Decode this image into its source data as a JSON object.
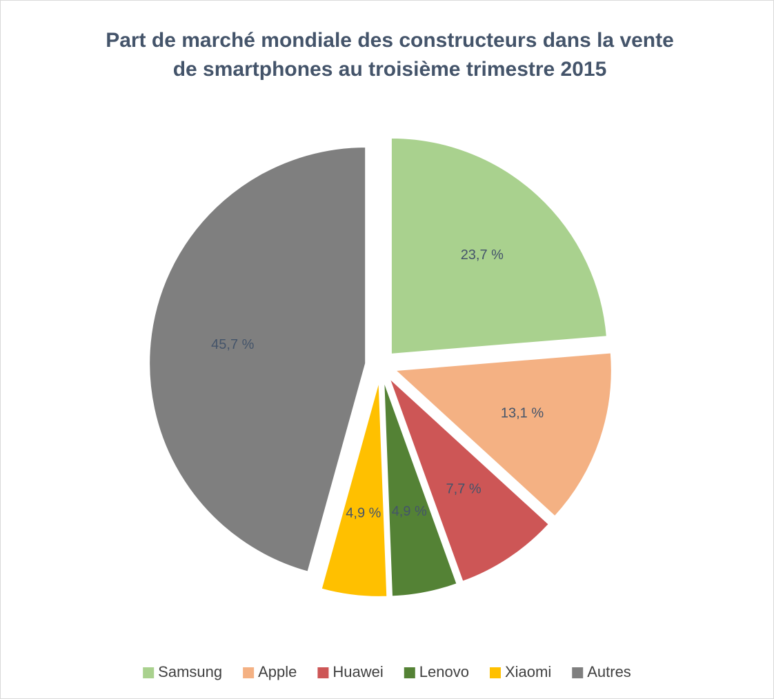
{
  "chart_data": {
    "type": "pie",
    "title": [
      "Part de marché mondiale des constructeurs dans la vente",
      "de smartphones au troisième trimestre 2015"
    ],
    "categories": [
      "Samsung",
      "Apple",
      "Huawei",
      "Lenovo",
      "Xiaomi",
      "Autres"
    ],
    "values": [
      23.7,
      13.1,
      7.7,
      4.9,
      4.9,
      45.7
    ],
    "value_labels": [
      "23,7 %",
      "13,1 %",
      "7,7 %",
      "4,9 %",
      "4,9 %",
      "45,7 %"
    ],
    "colors": [
      "#a9d18e",
      "#f4b183",
      "#cd5656",
      "#548235",
      "#ffc000",
      "#7f7f7f"
    ],
    "legend": "bottom"
  }
}
